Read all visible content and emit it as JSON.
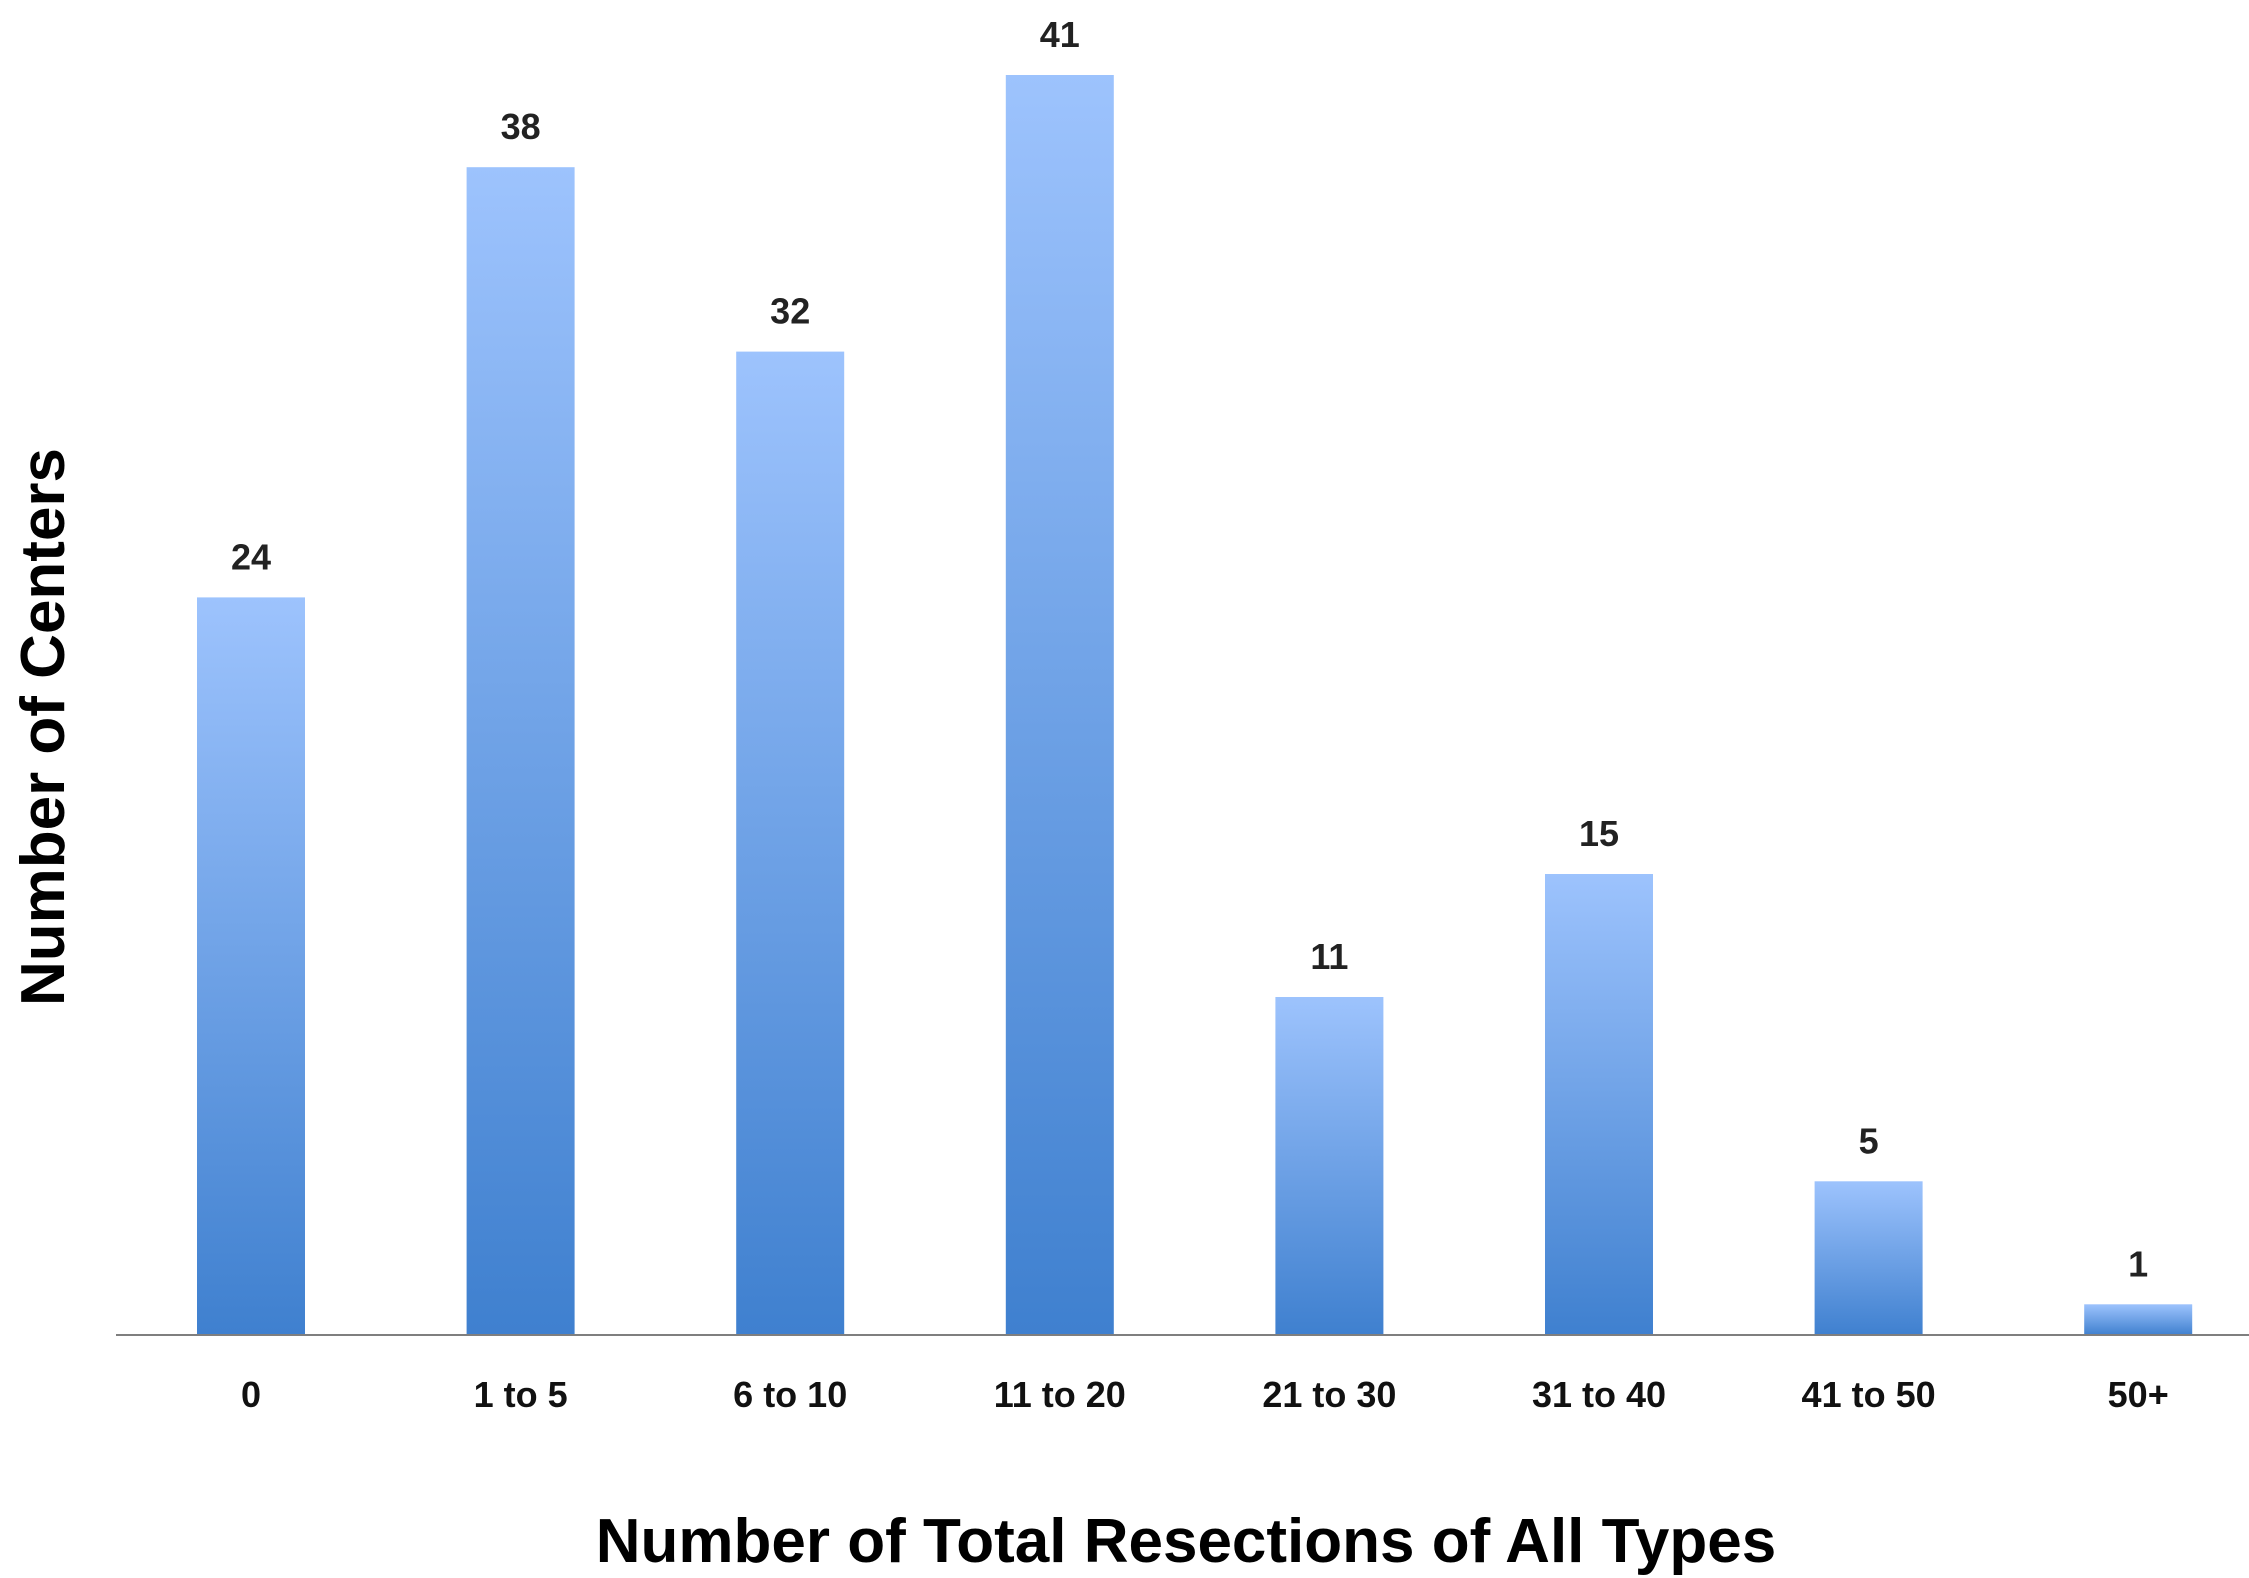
{
  "chart_data": {
    "type": "bar",
    "title": "",
    "xlabel": "Number of Total Resections of All Types",
    "ylabel": "Number of Centers",
    "categories": [
      "0",
      "1 to 5",
      "6 to 10",
      "11 to 20",
      "21 to 30",
      "31 to 40",
      "41 to 50",
      "50+"
    ],
    "values": [
      24,
      38,
      32,
      41,
      11,
      15,
      5,
      1
    ],
    "data_labels": [
      "24",
      "38",
      "32",
      "41",
      "11",
      "15",
      "5",
      "1"
    ],
    "ylim": [
      0,
      41
    ],
    "grid": false,
    "legend": "none",
    "colors": {
      "bar_top": "#9dc3fd",
      "bar_bottom": "#3f80cf",
      "axis": "#7f7f7f"
    }
  }
}
